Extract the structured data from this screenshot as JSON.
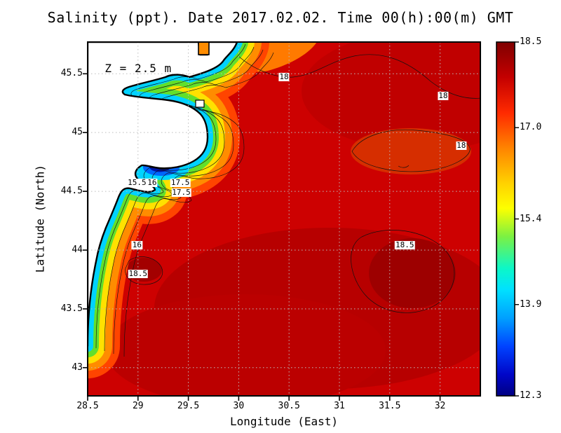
{
  "chart_data": {
    "type": "heatmap",
    "subtype": "filled-contour-map",
    "title": "Salinity (ppt). Date 2017.02.02. Time 00(h):00(m) GMT",
    "field": "Salinity (ppt)",
    "date": "2017.02.02",
    "time_gmt": "00(h):00(m)",
    "xlabel": "Longitude (East)",
    "ylabel": "Latitude (North)",
    "annotation": {
      "text": "Z = 2.5 m",
      "lon": 28.67,
      "lat": 45.55
    },
    "xlim": [
      28.5,
      32.4
    ],
    "ylim": [
      42.76,
      45.77
    ],
    "x_ticks": [
      28.5,
      29,
      29.5,
      30,
      30.5,
      31,
      31.5,
      32
    ],
    "y_ticks": [
      43,
      43.5,
      44,
      44.5,
      45,
      45.5
    ],
    "grid": true,
    "colorbar": {
      "min": 12.3,
      "max": 18.5,
      "tick_values": [
        18.5,
        17.0,
        15.4,
        13.9,
        12.3
      ],
      "tick_labels": [
        "18.5",
        "17.0",
        "15.4",
        "13.9",
        "12.3"
      ],
      "gradient": [
        {
          "offset": 0.0,
          "color": "#7f0000"
        },
        {
          "offset": 0.1,
          "color": "#c40000"
        },
        {
          "offset": 0.2,
          "color": "#ff2a00"
        },
        {
          "offset": 0.3,
          "color": "#ff8400"
        },
        {
          "offset": 0.4,
          "color": "#ffd200"
        },
        {
          "offset": 0.47,
          "color": "#fdff00"
        },
        {
          "offset": 0.55,
          "color": "#7bf143"
        },
        {
          "offset": 0.64,
          "color": "#0cf7c8"
        },
        {
          "offset": 0.7,
          "color": "#00e1ff"
        },
        {
          "offset": 0.78,
          "color": "#00a0ff"
        },
        {
          "offset": 0.86,
          "color": "#0043ff"
        },
        {
          "offset": 0.94,
          "color": "#0006c8"
        },
        {
          "offset": 1.0,
          "color": "#000082"
        }
      ]
    },
    "colors": {
      "land": "#ffffff",
      "coastline": "#000000",
      "high_salinity": "#7f0000",
      "low_salinity": "#000082"
    },
    "contour_labels": [
      {
        "value": "18",
        "lon": 30.45,
        "lat": 45.47
      },
      {
        "value": "18",
        "lon": 32.03,
        "lat": 45.31
      },
      {
        "value": "18",
        "lon": 32.21,
        "lat": 44.89
      },
      {
        "value": "15.5",
        "lon": 28.99,
        "lat": 44.57
      },
      {
        "value": "16",
        "lon": 29.14,
        "lat": 44.57
      },
      {
        "value": "17.5",
        "lon": 29.42,
        "lat": 44.57
      },
      {
        "value": "17.5",
        "lon": 29.43,
        "lat": 44.49
      },
      {
        "value": "16",
        "lon": 28.99,
        "lat": 44.04
      },
      {
        "value": "18.5",
        "lon": 31.65,
        "lat": 44.04
      },
      {
        "value": "18.5",
        "lon": 29.0,
        "lat": 43.8
      }
    ]
  }
}
